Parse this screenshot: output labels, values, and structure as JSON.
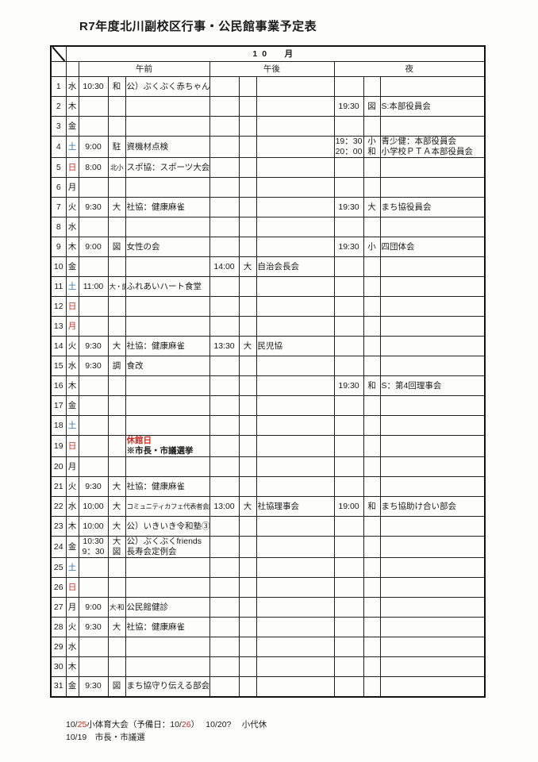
{
  "title": "R7年度北川副校区行事・公民館事業予定表",
  "header": {
    "month": "10　月",
    "sections": [
      "午前",
      "午後",
      "夜"
    ]
  },
  "colors": {
    "red": "#cf2b1f",
    "blue": "#2e74b5",
    "grid": "#1a1a1a"
  },
  "rows": [
    {
      "day": 1,
      "dow": "水",
      "c": "k",
      "am": [
        {
          "t": "10:30",
          "l": "和",
          "e": "公）ぶくぶく赤ちゃん"
        }
      ],
      "pm": [],
      "night": []
    },
    {
      "day": 2,
      "dow": "木",
      "c": "k",
      "am": [],
      "pm": [],
      "night": [
        {
          "t": "19:30",
          "l": "図",
          "e": "S:本部役員会"
        }
      ]
    },
    {
      "day": 3,
      "dow": "金",
      "c": "k",
      "am": [],
      "pm": [],
      "night": []
    },
    {
      "day": 4,
      "dow": "土",
      "c": "b",
      "am": [
        {
          "t": "9:00",
          "l": "駐",
          "e": "資機材点検"
        }
      ],
      "pm": [],
      "night": [
        {
          "t": "19：30",
          "l": "小",
          "e": "青少健：本部役員会"
        },
        {
          "t": "20：00",
          "l": "和",
          "e": "小学校ＰＴＡ本部役員会"
        }
      ]
    },
    {
      "day": 5,
      "dow": "日",
      "c": "r",
      "am": [
        {
          "t": "8:00",
          "l": "北小",
          "e": "スポ協：スポーツ大会"
        }
      ],
      "pm": [],
      "night": []
    },
    {
      "day": 6,
      "dow": "月",
      "c": "k",
      "am": [],
      "pm": [],
      "night": []
    },
    {
      "day": 7,
      "dow": "火",
      "c": "k",
      "am": [
        {
          "t": "9:30",
          "l": "大",
          "e": "社協：健康麻雀"
        }
      ],
      "pm": [],
      "night": [
        {
          "t": "19:30",
          "l": "大",
          "e": "まち協役員会"
        }
      ]
    },
    {
      "day": 8,
      "dow": "水",
      "c": "k",
      "am": [],
      "pm": [],
      "night": []
    },
    {
      "day": 9,
      "dow": "木",
      "c": "k",
      "am": [
        {
          "t": "9:00",
          "l": "図",
          "e": "女性の会"
        }
      ],
      "pm": [],
      "night": [
        {
          "t": "19:30",
          "l": "小",
          "e": "四団体会"
        }
      ]
    },
    {
      "day": 10,
      "dow": "金",
      "c": "k",
      "am": [],
      "pm": [
        {
          "t": "14:00",
          "l": "大",
          "e": "自治会長会"
        }
      ],
      "night": []
    },
    {
      "day": 11,
      "dow": "土",
      "c": "b",
      "am": [
        {
          "t": "11:00",
          "l": "大・調",
          "e": "ふれあいハート食堂"
        }
      ],
      "pm": [],
      "night": []
    },
    {
      "day": 12,
      "dow": "日",
      "c": "r",
      "am": [],
      "pm": [],
      "night": []
    },
    {
      "day": 13,
      "dow": "月",
      "c": "r",
      "am": [],
      "pm": [],
      "night": []
    },
    {
      "day": 14,
      "dow": "火",
      "c": "k",
      "am": [
        {
          "t": "9:30",
          "l": "大",
          "e": "社協：健康麻雀"
        }
      ],
      "pm": [
        {
          "t": "13:30",
          "l": "大",
          "e": "民児協"
        }
      ],
      "night": []
    },
    {
      "day": 15,
      "dow": "水",
      "c": "k",
      "am": [
        {
          "t": "9:30",
          "l": "調",
          "e": "食改"
        }
      ],
      "pm": [],
      "night": []
    },
    {
      "day": 16,
      "dow": "木",
      "c": "k",
      "am": [],
      "pm": [],
      "night": [
        {
          "t": "19:30",
          "l": "和",
          "e": "S：第4回理事会"
        }
      ]
    },
    {
      "day": 17,
      "dow": "金",
      "c": "k",
      "am": [],
      "pm": [],
      "night": []
    },
    {
      "day": 18,
      "dow": "土",
      "c": "b",
      "am": [],
      "pm": [],
      "night": []
    },
    {
      "day": 19,
      "dow": "日",
      "c": "r",
      "am": [
        {
          "t": "",
          "l": "",
          "e": "休館日",
          "ec": "r",
          "b": true
        },
        {
          "t": "",
          "l": "",
          "e": "※市長・市議選挙",
          "b": true
        }
      ],
      "pm": [],
      "night": []
    },
    {
      "day": 20,
      "dow": "月",
      "c": "k",
      "am": [],
      "pm": [],
      "night": []
    },
    {
      "day": 21,
      "dow": "火",
      "c": "k",
      "am": [
        {
          "t": "9:30",
          "l": "大",
          "e": "社協：健康麻雀"
        }
      ],
      "pm": [],
      "night": []
    },
    {
      "day": 22,
      "dow": "水",
      "c": "k",
      "am": [
        {
          "t": "10:00",
          "l": "大",
          "e": "コミュニティカフェ代表者会議",
          "es": true
        }
      ],
      "pm": [
        {
          "t": "13:00",
          "l": "大",
          "e": "社協理事会"
        }
      ],
      "night": [
        {
          "t": "19:00",
          "l": "和",
          "e": "まち協助け合い部会"
        }
      ]
    },
    {
      "day": 23,
      "dow": "木",
      "c": "k",
      "am": [
        {
          "t": "10:00",
          "l": "大",
          "e": "公）いきいき令和塾③"
        }
      ],
      "pm": [],
      "night": []
    },
    {
      "day": 24,
      "dow": "金",
      "c": "k",
      "am": [
        {
          "t": "10:30",
          "l": "大",
          "e": "公）ぶくぶくfriends"
        },
        {
          "t": "9：30",
          "l": "図",
          "e": "長寿会定例会"
        }
      ],
      "pm": [],
      "night": []
    },
    {
      "day": 25,
      "dow": "土",
      "c": "b",
      "am": [],
      "pm": [],
      "night": []
    },
    {
      "day": 26,
      "dow": "日",
      "c": "r",
      "am": [],
      "pm": [],
      "night": []
    },
    {
      "day": 27,
      "dow": "月",
      "c": "k",
      "am": [
        {
          "t": "9:00",
          "l": "大-和",
          "e": "公民館健診"
        }
      ],
      "pm": [],
      "night": []
    },
    {
      "day": 28,
      "dow": "火",
      "c": "k",
      "am": [
        {
          "t": "9:30",
          "l": "大",
          "e": "社協：健康麻雀"
        }
      ],
      "pm": [],
      "night": []
    },
    {
      "day": 29,
      "dow": "水",
      "c": "k",
      "am": [],
      "pm": [],
      "night": []
    },
    {
      "day": 30,
      "dow": "木",
      "c": "k",
      "am": [],
      "pm": [],
      "night": []
    },
    {
      "day": 31,
      "dow": "金",
      "c": "k",
      "am": [
        {
          "t": "9:30",
          "l": "図",
          "e": "まち協守り伝える部会"
        }
      ],
      "pm": [],
      "night": []
    }
  ],
  "footer": {
    "lines": [
      [
        {
          "text": "10/"
        },
        {
          "text": "25",
          "color": "red"
        },
        {
          "text": "小体育大会（予備日：10/"
        },
        {
          "text": "26",
          "color": "red"
        },
        {
          "text": "）　 10/20?　 小代休"
        }
      ],
      [
        {
          "text": "10/19　市長・市議選"
        }
      ]
    ]
  }
}
